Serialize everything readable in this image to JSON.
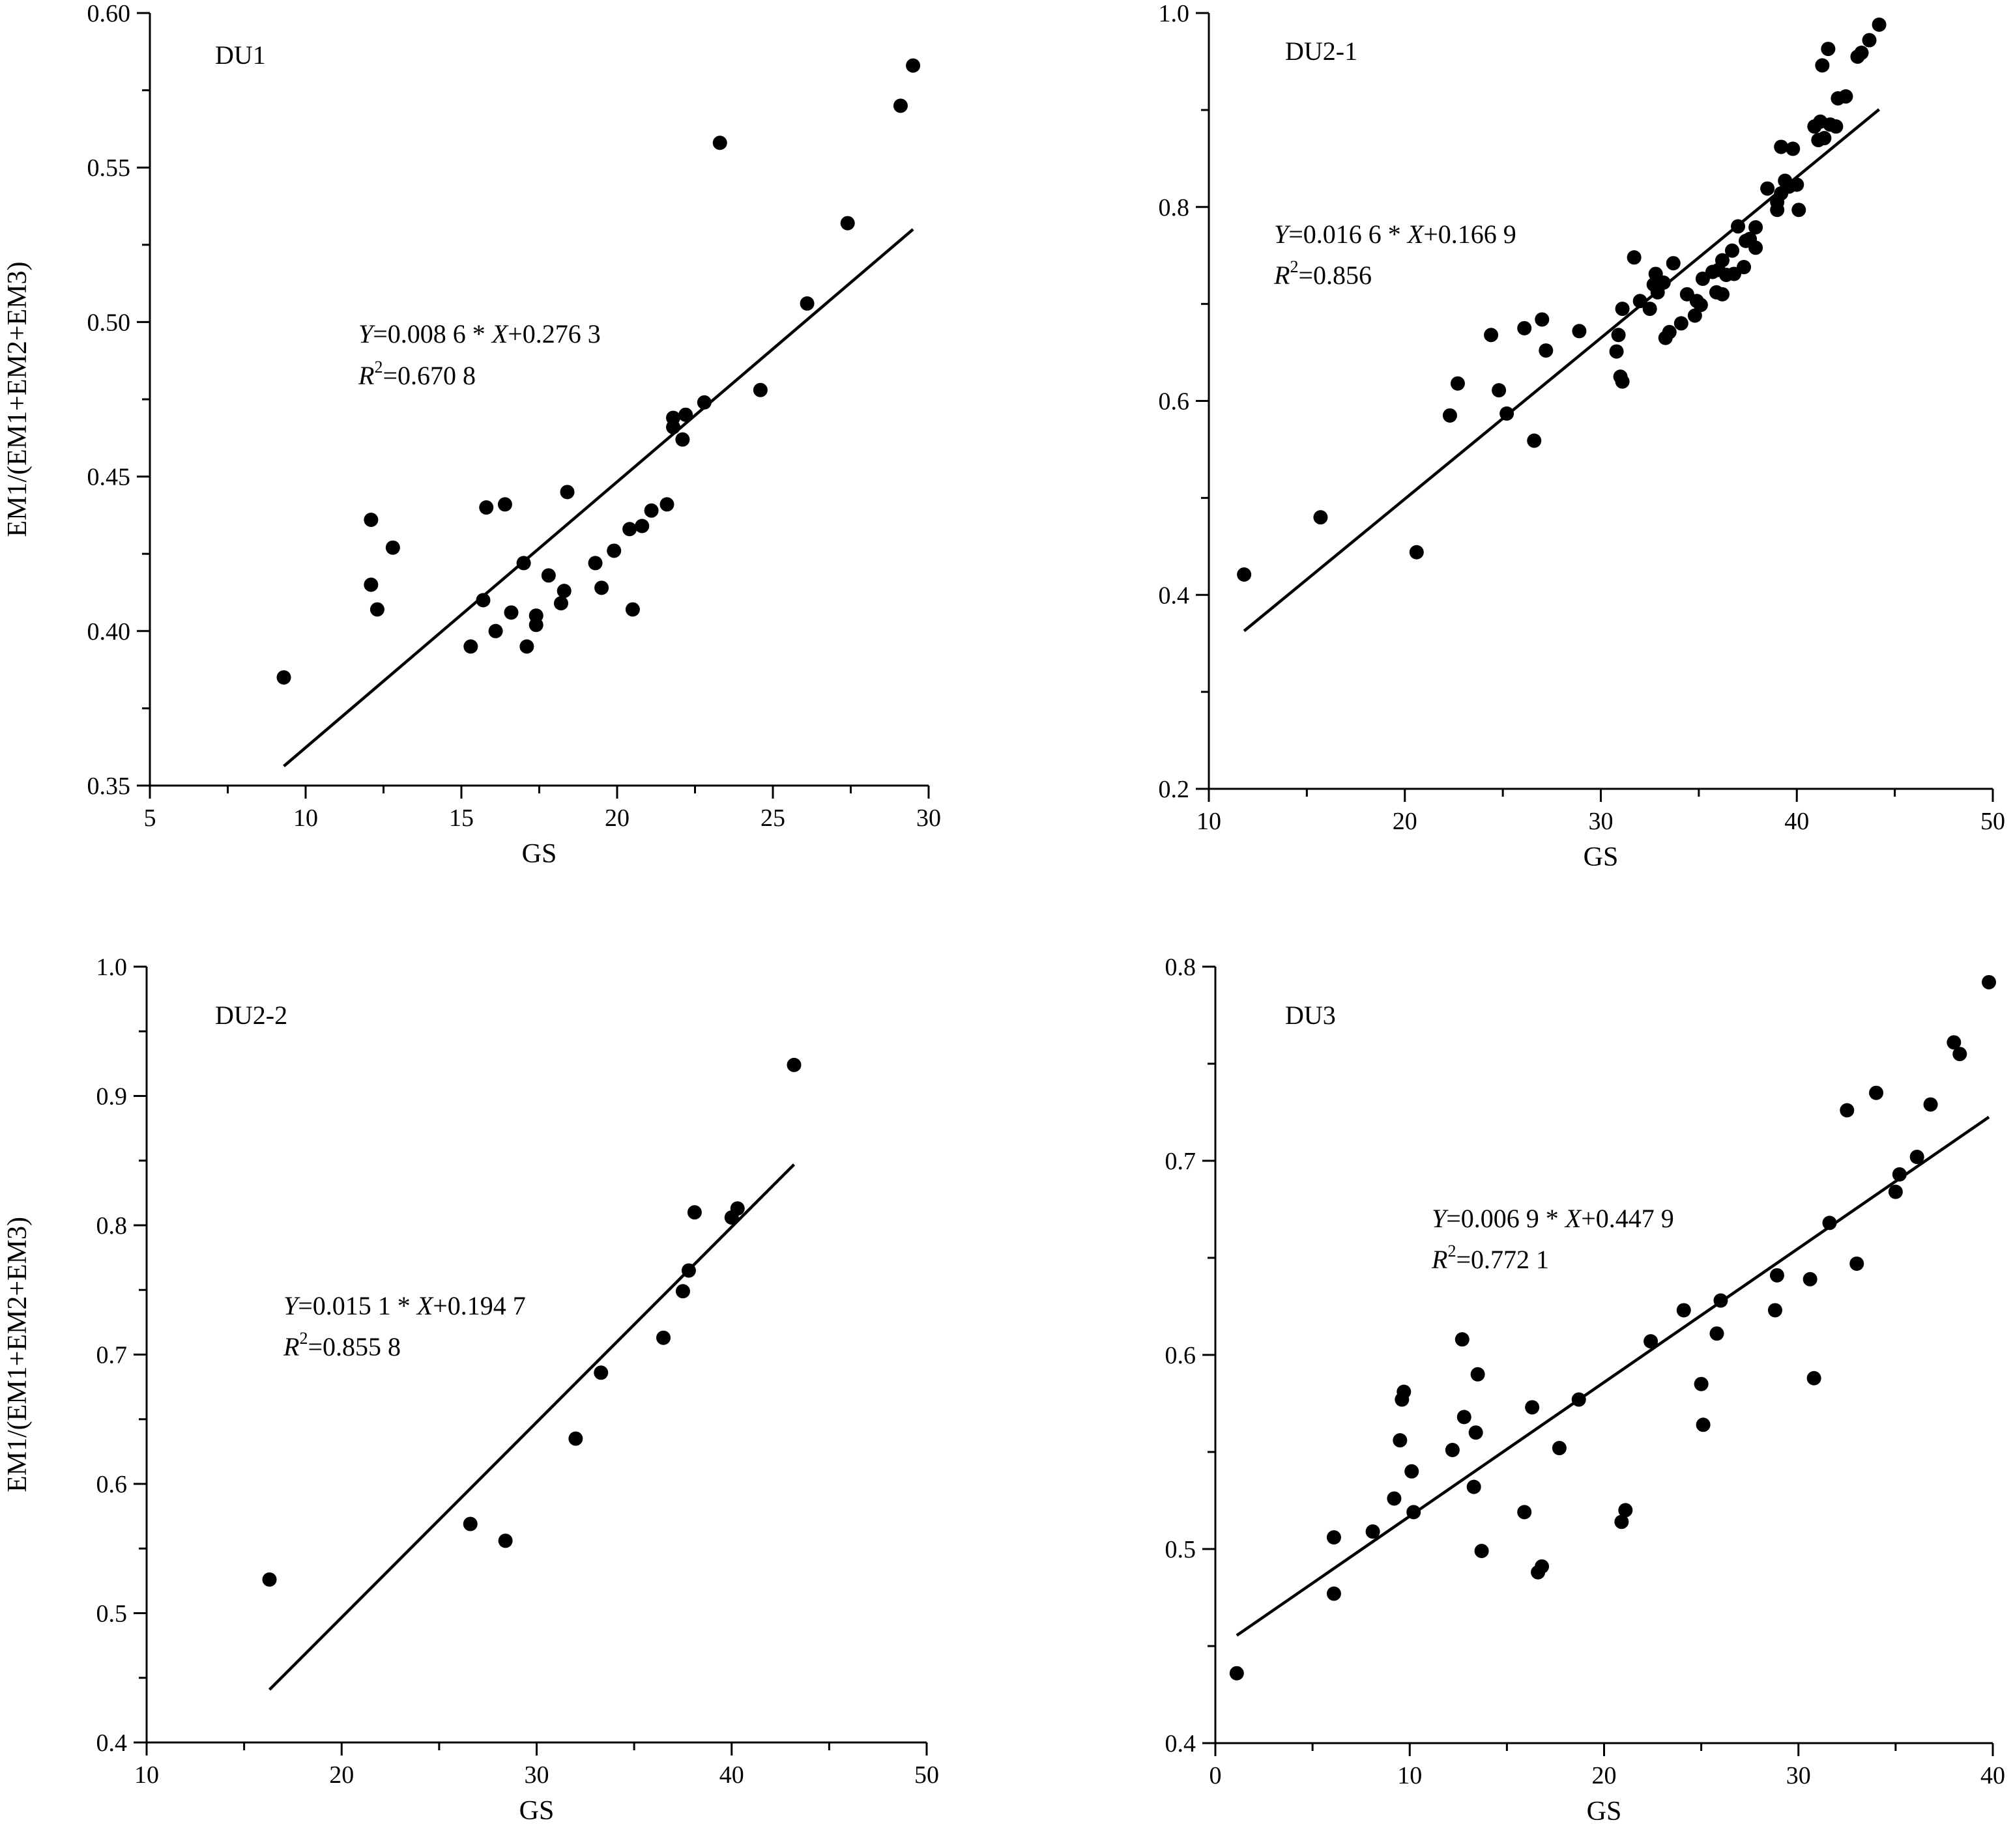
{
  "chart_data": [
    {
      "type": "scatter",
      "title": "DU1",
      "xlabel": "GS",
      "ylabel": "EM1/(EM1+EM2+EM3)",
      "xlim": [
        5,
        30
      ],
      "ylim": [
        0.35,
        0.6
      ],
      "xticks": [
        "5",
        "10",
        "15",
        "20",
        "25",
        "30"
      ],
      "yticks": [
        "0.35",
        "0.40",
        "0.45",
        "0.50",
        "0.55",
        "0.60"
      ],
      "equation": {
        "y_var": "Y",
        "eq_mid": "=0.008 6 * ",
        "x_var": "X",
        "eq_end": "+0.276 3",
        "r_var": "R",
        "r_sup": "2",
        "r_val": "=0.670 8"
      },
      "fit": {
        "slope": 0.0086,
        "intercept": 0.2763,
        "x_range": [
          9.3,
          29.5
        ]
      },
      "points": [
        [
          9.3,
          0.385
        ],
        [
          12.1,
          0.436
        ],
        [
          12.1,
          0.415
        ],
        [
          12.3,
          0.407
        ],
        [
          12.8,
          0.427
        ],
        [
          15.3,
          0.395
        ],
        [
          15.7,
          0.41
        ],
        [
          15.8,
          0.44
        ],
        [
          16.1,
          0.4
        ],
        [
          16.4,
          0.441
        ],
        [
          16.6,
          0.406
        ],
        [
          17.0,
          0.422
        ],
        [
          17.1,
          0.395
        ],
        [
          17.4,
          0.402
        ],
        [
          17.4,
          0.405
        ],
        [
          17.8,
          0.418
        ],
        [
          18.2,
          0.409
        ],
        [
          18.3,
          0.413
        ],
        [
          18.4,
          0.445
        ],
        [
          19.3,
          0.422
        ],
        [
          19.5,
          0.414
        ],
        [
          19.9,
          0.426
        ],
        [
          20.4,
          0.433
        ],
        [
          20.5,
          0.407
        ],
        [
          20.8,
          0.434
        ],
        [
          21.1,
          0.439
        ],
        [
          21.6,
          0.441
        ],
        [
          21.8,
          0.469
        ],
        [
          21.8,
          0.466
        ],
        [
          22.1,
          0.462
        ],
        [
          22.2,
          0.47
        ],
        [
          22.8,
          0.474
        ],
        [
          23.3,
          0.558
        ],
        [
          24.6,
          0.478
        ],
        [
          26.1,
          0.506
        ],
        [
          27.4,
          0.532
        ],
        [
          29.1,
          0.57
        ],
        [
          29.5,
          0.583
        ]
      ]
    },
    {
      "type": "scatter",
      "title": "DU2-1",
      "xlabel": "GS",
      "ylabel": "",
      "xlim": [
        10,
        50
      ],
      "ylim": [
        0.2,
        1.0
      ],
      "xticks": [
        "10",
        "20",
        "30",
        "40",
        "50"
      ],
      "yticks": [
        "0.2",
        "0.4",
        "0.6",
        "0.8",
        "1.0"
      ],
      "equation": {
        "y_var": "Y",
        "eq_mid": "=0.016 6 * ",
        "x_var": "X",
        "eq_end": "+0.166 9",
        "r_var": "R",
        "r_sup": "2",
        "r_val": "=0.856"
      },
      "fit": {
        "slope": 0.0166,
        "intercept": 0.1669,
        "x_range": [
          11.8,
          44.2
        ]
      },
      "points": [
        [
          11.8,
          0.421
        ],
        [
          15.7,
          0.48
        ],
        [
          20.6,
          0.444
        ],
        [
          22.3,
          0.585
        ],
        [
          22.7,
          0.618
        ],
        [
          24.4,
          0.668
        ],
        [
          24.8,
          0.611
        ],
        [
          25.2,
          0.587
        ],
        [
          26.1,
          0.675
        ],
        [
          26.6,
          0.559
        ],
        [
          27.0,
          0.684
        ],
        [
          27.2,
          0.652
        ],
        [
          28.9,
          0.672
        ],
        [
          30.8,
          0.651
        ],
        [
          30.9,
          0.668
        ],
        [
          31.0,
          0.625
        ],
        [
          31.1,
          0.62
        ],
        [
          31.1,
          0.695
        ],
        [
          31.7,
          0.748
        ],
        [
          32.0,
          0.703
        ],
        [
          32.5,
          0.695
        ],
        [
          32.7,
          0.72
        ],
        [
          32.8,
          0.731
        ],
        [
          32.9,
          0.712
        ],
        [
          33.2,
          0.722
        ],
        [
          33.3,
          0.665
        ],
        [
          33.5,
          0.671
        ],
        [
          33.7,
          0.742
        ],
        [
          34.1,
          0.68
        ],
        [
          34.4,
          0.71
        ],
        [
          34.8,
          0.688
        ],
        [
          34.9,
          0.703
        ],
        [
          35.1,
          0.699
        ],
        [
          35.2,
          0.726
        ],
        [
          35.7,
          0.733
        ],
        [
          35.9,
          0.712
        ],
        [
          36.0,
          0.735
        ],
        [
          36.2,
          0.745
        ],
        [
          36.2,
          0.71
        ],
        [
          36.4,
          0.73
        ],
        [
          36.7,
          0.755
        ],
        [
          36.8,
          0.731
        ],
        [
          37.0,
          0.78
        ],
        [
          37.3,
          0.738
        ],
        [
          37.4,
          0.765
        ],
        [
          37.6,
          0.767
        ],
        [
          37.9,
          0.779
        ],
        [
          37.9,
          0.758
        ],
        [
          38.5,
          0.819
        ],
        [
          39.0,
          0.797
        ],
        [
          39.0,
          0.805
        ],
        [
          39.2,
          0.814
        ],
        [
          39.2,
          0.862
        ],
        [
          39.4,
          0.827
        ],
        [
          39.6,
          0.821
        ],
        [
          39.8,
          0.86
        ],
        [
          40.0,
          0.823
        ],
        [
          40.1,
          0.797
        ],
        [
          40.9,
          0.883
        ],
        [
          41.1,
          0.869
        ],
        [
          41.2,
          0.888
        ],
        [
          41.3,
          0.946
        ],
        [
          41.4,
          0.871
        ],
        [
          41.6,
          0.963
        ],
        [
          41.7,
          0.885
        ],
        [
          42.0,
          0.883
        ],
        [
          42.1,
          0.912
        ],
        [
          42.5,
          0.914
        ],
        [
          43.1,
          0.955
        ],
        [
          43.3,
          0.959
        ],
        [
          43.7,
          0.972
        ],
        [
          44.2,
          0.988
        ]
      ]
    },
    {
      "type": "scatter",
      "title": "DU2-2",
      "xlabel": "GS",
      "ylabel": "EM1/(EM1+EM2+EM3)",
      "xlim": [
        10,
        50
      ],
      "ylim": [
        0.4,
        1.0
      ],
      "xticks": [
        "10",
        "20",
        "30",
        "40",
        "50"
      ],
      "yticks": [
        "0.4",
        "0.5",
        "0.6",
        "0.7",
        "0.8",
        "0.9",
        "1.0"
      ],
      "equation": {
        "y_var": "Y",
        "eq_mid": "=0.015 1 * ",
        "x_var": "X",
        "eq_end": "+0.194 7",
        "r_var": "R",
        "r_sup": "2",
        "r_val": "=0.855 8"
      },
      "fit": {
        "slope": 0.0151,
        "intercept": 0.1947,
        "x_range": [
          16.3,
          43.2
        ]
      },
      "points": [
        [
          16.3,
          0.526
        ],
        [
          26.6,
          0.569
        ],
        [
          28.4,
          0.556
        ],
        [
          32.0,
          0.635
        ],
        [
          33.3,
          0.686
        ],
        [
          36.5,
          0.713
        ],
        [
          37.5,
          0.749
        ],
        [
          37.8,
          0.765
        ],
        [
          38.1,
          0.81
        ],
        [
          40.0,
          0.806
        ],
        [
          40.3,
          0.813
        ],
        [
          43.2,
          0.924
        ]
      ]
    },
    {
      "type": "scatter",
      "title": "DU3",
      "xlabel": "GS",
      "ylabel": "",
      "xlim": [
        0,
        40
      ],
      "ylim": [
        0.4,
        0.8
      ],
      "xticks": [
        "0",
        "10",
        "20",
        "30",
        "40"
      ],
      "yticks": [
        "0.4",
        "0.5",
        "0.6",
        "0.7",
        "0.8"
      ],
      "equation": {
        "y_var": "Y",
        "eq_mid": "=0.006 9 * ",
        "x_var": "X",
        "eq_end": "+0.447 9",
        "r_var": "R",
        "r_sup": "2",
        "r_val": "=0.772 1"
      },
      "fit": {
        "slope": 0.0069,
        "intercept": 0.4479,
        "x_range": [
          1.1,
          39.8
        ]
      },
      "points": [
        [
          1.1,
          0.436
        ],
        [
          6.1,
          0.506
        ],
        [
          6.1,
          0.477
        ],
        [
          8.1,
          0.509
        ],
        [
          9.2,
          0.526
        ],
        [
          9.5,
          0.556
        ],
        [
          9.6,
          0.577
        ],
        [
          9.7,
          0.581
        ],
        [
          10.1,
          0.54
        ],
        [
          10.2,
          0.519
        ],
        [
          12.2,
          0.551
        ],
        [
          12.7,
          0.608
        ],
        [
          12.8,
          0.568
        ],
        [
          13.3,
          0.532
        ],
        [
          13.4,
          0.56
        ],
        [
          13.5,
          0.59
        ],
        [
          13.7,
          0.499
        ],
        [
          15.9,
          0.519
        ],
        [
          16.3,
          0.573
        ],
        [
          16.6,
          0.488
        ],
        [
          16.8,
          0.491
        ],
        [
          17.7,
          0.552
        ],
        [
          18.7,
          0.577
        ],
        [
          20.9,
          0.514
        ],
        [
          21.1,
          0.52
        ],
        [
          22.4,
          0.607
        ],
        [
          24.1,
          0.623
        ],
        [
          25.0,
          0.585
        ],
        [
          25.1,
          0.564
        ],
        [
          25.8,
          0.611
        ],
        [
          26.0,
          0.628
        ],
        [
          28.8,
          0.623
        ],
        [
          28.9,
          0.641
        ],
        [
          30.6,
          0.639
        ],
        [
          30.8,
          0.588
        ],
        [
          31.6,
          0.668
        ],
        [
          32.5,
          0.726
        ],
        [
          33.0,
          0.647
        ],
        [
          34.0,
          0.735
        ],
        [
          35.0,
          0.684
        ],
        [
          35.2,
          0.693
        ],
        [
          36.1,
          0.702
        ],
        [
          36.8,
          0.729
        ],
        [
          38.0,
          0.761
        ],
        [
          38.3,
          0.755
        ],
        [
          39.8,
          0.792
        ]
      ]
    }
  ]
}
